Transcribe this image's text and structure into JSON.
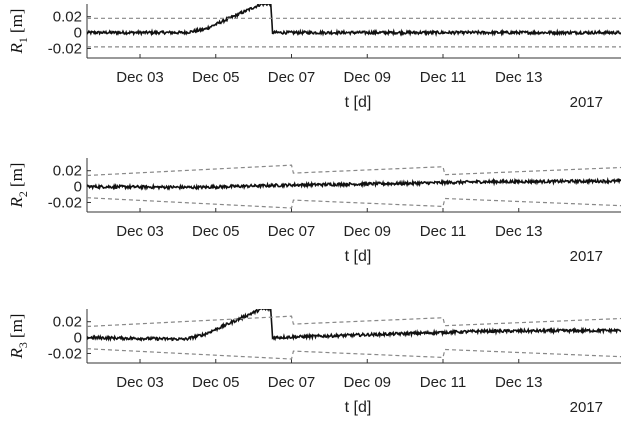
{
  "chart_data": [
    {
      "type": "line",
      "ylabel": {
        "symbol": "R",
        "subscript": "1",
        "unit": "[m]"
      },
      "xlabel": "t [d]",
      "year_label": "2017",
      "x_tick_labels": [
        "Dec 03",
        "Dec 05",
        "Dec 07",
        "Dec 09",
        "Dec 11",
        "Dec 13"
      ],
      "y_tick_labels": [
        "0.02",
        "0",
        "-0.02"
      ],
      "y_ticks": [
        0.02,
        0,
        -0.02
      ],
      "x_range_days": [
        1.6,
        15.7
      ],
      "ylim": [
        -0.032,
        0.036
      ],
      "series": [
        {
          "role": "residual",
          "color": "#111111",
          "points": [
            [
              1.6,
              0.0
            ],
            [
              4.2,
              0.0
            ],
            [
              4.7,
              0.004
            ],
            [
              5.5,
              0.021
            ],
            [
              6.2,
              0.036
            ],
            [
              6.45,
              0.036
            ],
            [
              6.5,
              0.0
            ],
            [
              15.7,
              0.0
            ]
          ],
          "noise": 0.0018
        },
        {
          "role": "bound-upper",
          "color": "#888888",
          "dashed": true,
          "points": [
            [
              1.6,
              0.018
            ],
            [
              15.7,
              0.018
            ]
          ]
        },
        {
          "role": "bound-lower",
          "color": "#888888",
          "dashed": true,
          "points": [
            [
              1.6,
              -0.018
            ],
            [
              15.7,
              -0.018
            ]
          ]
        }
      ]
    },
    {
      "type": "line",
      "ylabel": {
        "symbol": "R",
        "subscript": "2",
        "unit": "[m]"
      },
      "xlabel": "t [d]",
      "year_label": "2017",
      "x_tick_labels": [
        "Dec 03",
        "Dec 05",
        "Dec 07",
        "Dec 09",
        "Dec 11",
        "Dec 13"
      ],
      "y_tick_labels": [
        "0.02",
        "0",
        "-0.02"
      ],
      "y_ticks": [
        0.02,
        0,
        -0.02
      ],
      "x_range_days": [
        1.6,
        15.7
      ],
      "ylim": [
        -0.032,
        0.036
      ],
      "series": [
        {
          "role": "residual",
          "color": "#111111",
          "points": [
            [
              1.6,
              0.0
            ],
            [
              4.5,
              -0.001
            ],
            [
              7.0,
              0.002
            ],
            [
              10.0,
              0.004
            ],
            [
              12.0,
              0.006
            ],
            [
              15.7,
              0.007
            ]
          ],
          "noise": 0.0018
        },
        {
          "role": "bound-upper",
          "color": "#888888",
          "dashed": true,
          "points": [
            [
              1.6,
              0.014
            ],
            [
              7.0,
              0.027
            ],
            [
              7.05,
              0.017
            ],
            [
              11.0,
              0.025
            ],
            [
              11.05,
              0.015
            ],
            [
              15.7,
              0.024
            ]
          ]
        },
        {
          "role": "bound-lower",
          "color": "#888888",
          "dashed": true,
          "points": [
            [
              1.6,
              -0.014
            ],
            [
              7.0,
              -0.027
            ],
            [
              7.05,
              -0.017
            ],
            [
              11.0,
              -0.025
            ],
            [
              11.05,
              -0.015
            ],
            [
              15.7,
              -0.024
            ]
          ]
        }
      ]
    },
    {
      "type": "line",
      "ylabel": {
        "symbol": "R",
        "subscript": "3",
        "unit": "[m]"
      },
      "xlabel": "t [d]",
      "year_label": "2017",
      "x_tick_labels": [
        "Dec 03",
        "Dec 05",
        "Dec 07",
        "Dec 09",
        "Dec 11",
        "Dec 13"
      ],
      "y_tick_labels": [
        "0.02",
        "0",
        "-0.02"
      ],
      "y_ticks": [
        0.02,
        0,
        -0.02
      ],
      "x_range_days": [
        1.6,
        15.7
      ],
      "ylim": [
        -0.032,
        0.036
      ],
      "series": [
        {
          "role": "residual",
          "color": "#111111",
          "points": [
            [
              1.6,
              0.0
            ],
            [
              4.2,
              -0.002
            ],
            [
              4.7,
              0.004
            ],
            [
              5.5,
              0.021
            ],
            [
              6.2,
              0.036
            ],
            [
              6.45,
              0.036
            ],
            [
              6.5,
              0.0
            ],
            [
              10.0,
              0.005
            ],
            [
              12.0,
              0.008
            ],
            [
              15.7,
              0.009
            ]
          ],
          "noise": 0.0018
        },
        {
          "role": "bound-upper",
          "color": "#888888",
          "dashed": true,
          "points": [
            [
              1.6,
              0.014
            ],
            [
              7.0,
              0.027
            ],
            [
              7.05,
              0.017
            ],
            [
              11.0,
              0.025
            ],
            [
              11.05,
              0.015
            ],
            [
              15.7,
              0.024
            ]
          ]
        },
        {
          "role": "bound-lower",
          "color": "#888888",
          "dashed": true,
          "points": [
            [
              1.6,
              -0.014
            ],
            [
              7.0,
              -0.027
            ],
            [
              7.05,
              -0.017
            ],
            [
              11.0,
              -0.025
            ],
            [
              11.05,
              -0.015
            ],
            [
              15.7,
              -0.024
            ]
          ]
        }
      ]
    }
  ]
}
